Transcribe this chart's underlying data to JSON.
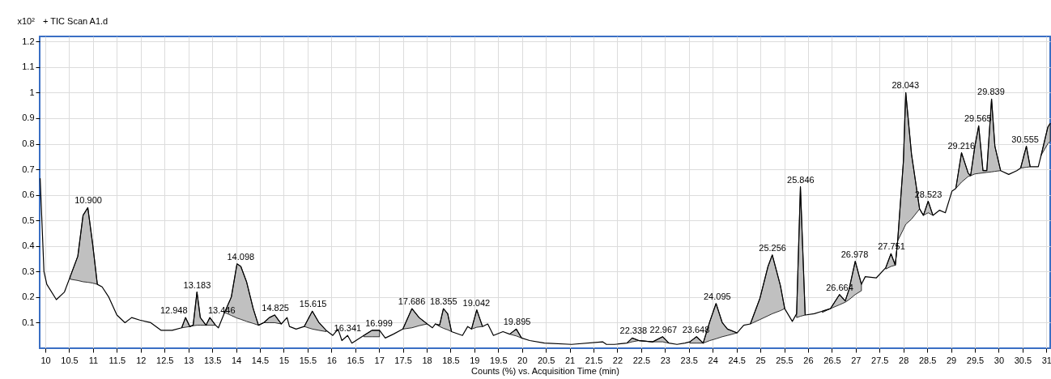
{
  "chart_data": {
    "type": "line",
    "title": "+ TIC Scan A1.d",
    "xlabel": "Counts (%) vs. Acquisition Time (min)",
    "ylabel": "x10²",
    "xlim": [
      9.88,
      31.08
    ],
    "ylim": [
      0,
      1.22
    ],
    "xticks": [
      10,
      10.5,
      11,
      11.5,
      12,
      12.5,
      13,
      13.5,
      14,
      14.5,
      15,
      15.5,
      16,
      16.5,
      17,
      17.5,
      18,
      18.5,
      19,
      19.5,
      20,
      20.5,
      21,
      21.5,
      22,
      22.5,
      23,
      23.5,
      24,
      24.5,
      25,
      25.5,
      26,
      26.5,
      27,
      27.5,
      28,
      28.5,
      29,
      29.5,
      30,
      30.5,
      31
    ],
    "yticks": [
      0.1,
      0.2,
      0.3,
      0.4,
      0.5,
      0.6,
      0.7,
      0.8,
      0.9,
      1,
      1.1,
      1.2
    ],
    "grid": true,
    "x": [
      9.89,
      9.97,
      10.03,
      10.23,
      10.4,
      10.52,
      10.68,
      10.79,
      10.89,
      10.99,
      11.09,
      11.19,
      11.33,
      11.5,
      11.67,
      11.81,
      11.98,
      12.21,
      12.43,
      12.66,
      12.86,
      12.94,
      13.03,
      13.1,
      13.18,
      13.25,
      13.37,
      13.45,
      13.57,
      13.63,
      13.76,
      13.9,
      14.02,
      14.1,
      14.22,
      14.36,
      14.47,
      14.58,
      14.7,
      14.81,
      14.95,
      15.07,
      15.12,
      15.26,
      15.43,
      15.6,
      15.74,
      15.89,
      16.03,
      16.14,
      16.22,
      16.34,
      16.43,
      16.68,
      16.85,
      17.01,
      17.13,
      17.3,
      17.5,
      17.69,
      17.84,
      18.01,
      18.12,
      18.18,
      18.27,
      18.35,
      18.44,
      18.52,
      18.75,
      18.86,
      18.94,
      19.05,
      19.17,
      19.28,
      19.4,
      19.6,
      19.74,
      19.88,
      19.99,
      20.16,
      20.47,
      21.04,
      21.69,
      21.77,
      21.94,
      22.2,
      22.31,
      22.45,
      22.74,
      22.95,
      23.08,
      23.25,
      23.42,
      23.52,
      23.66,
      23.8,
      23.94,
      24.07,
      24.2,
      24.31,
      24.51,
      24.65,
      24.79,
      24.99,
      25.16,
      25.25,
      25.42,
      25.51,
      25.67,
      25.76,
      25.84,
      25.94,
      26.13,
      26.3,
      26.47,
      26.66,
      26.78,
      26.86,
      26.99,
      27.12,
      27.2,
      27.43,
      27.63,
      27.74,
      27.83,
      27.88,
      28,
      28.05,
      28.17,
      28.34,
      28.42,
      28.52,
      28.62,
      28.76,
      28.88,
      29.02,
      29.1,
      29.22,
      29.36,
      29.41,
      29.5,
      29.58,
      29.67,
      29.75,
      29.85,
      29.92,
      30.04,
      30.21,
      30.38,
      30.46,
      30.58,
      30.66,
      30.83,
      30.89,
      31.03,
      31.08
    ],
    "series": [
      {
        "color": "#000000",
        "values": [
          0.665,
          0.3,
          0.25,
          0.19,
          0.22,
          0.28,
          0.36,
          0.52,
          0.55,
          0.41,
          0.25,
          0.24,
          0.2,
          0.13,
          0.1,
          0.12,
          0.11,
          0.1,
          0.07,
          0.07,
          0.08,
          0.12,
          0.085,
          0.09,
          0.22,
          0.12,
          0.09,
          0.12,
          0.09,
          0.08,
          0.14,
          0.2,
          0.33,
          0.32,
          0.26,
          0.155,
          0.09,
          0.1,
          0.12,
          0.13,
          0.095,
          0.12,
          0.085,
          0.075,
          0.085,
          0.145,
          0.1,
          0.07,
          0.05,
          0.075,
          0.03,
          0.05,
          0.02,
          0.05,
          0.07,
          0.07,
          0.04,
          0.055,
          0.075,
          0.155,
          0.12,
          0.095,
          0.08,
          0.095,
          0.09,
          0.155,
          0.135,
          0.065,
          0.05,
          0.085,
          0.075,
          0.15,
          0.085,
          0.095,
          0.05,
          0.065,
          0.055,
          0.075,
          0.04,
          0.03,
          0.02,
          0.015,
          0.025,
          0.015,
          0.015,
          0.02,
          0.04,
          0.03,
          0.025,
          0.045,
          0.02,
          0.015,
          0.02,
          0.025,
          0.045,
          0.02,
          0.105,
          0.175,
          0.1,
          0.075,
          0.06,
          0.09,
          0.095,
          0.195,
          0.32,
          0.365,
          0.245,
          0.155,
          0.105,
          0.135,
          0.632,
          0.13,
          0.135,
          0.145,
          0.155,
          0.21,
          0.185,
          0.23,
          0.34,
          0.25,
          0.28,
          0.275,
          0.315,
          0.37,
          0.325,
          0.42,
          0.73,
          1.0,
          0.76,
          0.545,
          0.52,
          0.575,
          0.52,
          0.54,
          0.53,
          0.615,
          0.625,
          0.765,
          0.685,
          0.675,
          0.79,
          0.87,
          0.695,
          0.695,
          0.975,
          0.79,
          0.695,
          0.68,
          0.695,
          0.705,
          0.79,
          0.71,
          0.71,
          0.755,
          0.865,
          0.88
        ],
        "lower": [
          null,
          null,
          null,
          null,
          null,
          0.27,
          0.265,
          0.26,
          0.258,
          0.255,
          0.25,
          null,
          null,
          null,
          null,
          null,
          null,
          null,
          null,
          null,
          0.08,
          0.082,
          0.085,
          0.088,
          0.09,
          0.09,
          0.09,
          0.09,
          0.09,
          null,
          0.14,
          0.128,
          0.118,
          0.113,
          0.105,
          0.097,
          0.09,
          0.1,
          0.1,
          0.1,
          0.095,
          null,
          null,
          null,
          0.085,
          0.075,
          0.07,
          0.065,
          null,
          null,
          null,
          null,
          null,
          0.045,
          0.045,
          0.045,
          null,
          null,
          0.075,
          0.08,
          0.088,
          0.095,
          null,
          0.095,
          0.085,
          0.078,
          0.072,
          0.065,
          null,
          null,
          0.075,
          0.082,
          0.085,
          null,
          null,
          null,
          0.055,
          0.048,
          0.04,
          null,
          null,
          null,
          null,
          null,
          null,
          0.02,
          0.025,
          0.03,
          0.025,
          0.025,
          0.02,
          null,
          null,
          0.02,
          0.02,
          0.02,
          0.03,
          0.037,
          0.045,
          0.05,
          0.06,
          null,
          0.095,
          0.112,
          0.127,
          0.135,
          0.147,
          0.155,
          null,
          0.12,
          0.125,
          0.13,
          null,
          0.14,
          0.155,
          0.17,
          0.18,
          0.19,
          0.21,
          0.225,
          null,
          null,
          0.31,
          0.32,
          0.325,
          0.42,
          0.465,
          0.485,
          0.505,
          0.545,
          0.52,
          0.53,
          0.52,
          null,
          null,
          null,
          0.625,
          0.65,
          0.672,
          0.675,
          0.682,
          0.684,
          0.686,
          0.688,
          0.69,
          0.692,
          0.695,
          null,
          null,
          0.705,
          0.708,
          0.71,
          null,
          0.755,
          0.8,
          0.81
        ],
        "upper": [
          null,
          null,
          null,
          null,
          null,
          0.28,
          0.36,
          0.52,
          0.55,
          0.41,
          0.25,
          null,
          null,
          null,
          null,
          null,
          null,
          null,
          null,
          null,
          0.08,
          0.12,
          0.085,
          0.09,
          0.22,
          0.12,
          0.09,
          0.12,
          0.09,
          null,
          0.14,
          0.2,
          0.33,
          0.32,
          0.26,
          0.155,
          0.09,
          0.1,
          0.12,
          0.13,
          0.095,
          null,
          null,
          null,
          0.085,
          0.145,
          0.1,
          0.07,
          null,
          null,
          null,
          null,
          null,
          0.05,
          0.07,
          0.07,
          null,
          null,
          0.075,
          0.155,
          0.12,
          0.095,
          null,
          0.095,
          0.09,
          0.155,
          0.135,
          0.065,
          null,
          null,
          0.075,
          0.15,
          0.085,
          null,
          null,
          null,
          0.055,
          0.075,
          0.04,
          null,
          null,
          null,
          null,
          null,
          null,
          0.02,
          0.04,
          0.03,
          0.025,
          0.045,
          0.02,
          null,
          null,
          0.025,
          0.045,
          0.02,
          0.105,
          0.175,
          0.1,
          0.075,
          0.06,
          null,
          0.095,
          0.195,
          0.32,
          0.365,
          0.245,
          0.155,
          null,
          0.135,
          0.632,
          0.13,
          null,
          0.145,
          0.155,
          0.21,
          0.185,
          0.23,
          0.34,
          0.25,
          null,
          null,
          0.315,
          0.37,
          0.325,
          0.42,
          0.73,
          1.0,
          0.76,
          0.545,
          0.52,
          0.575,
          0.52,
          null,
          null,
          null,
          0.625,
          0.765,
          0.685,
          0.675,
          0.79,
          0.87,
          0.695,
          0.695,
          0.975,
          0.79,
          0.695,
          null,
          null,
          0.705,
          0.79,
          0.71,
          null,
          0.755,
          0.865,
          0.88
        ]
      }
    ],
    "annotations": [
      {
        "text": "10.900",
        "x": 10.9,
        "y": 0.55
      },
      {
        "text": "12.948",
        "x": 12.948,
        "y": 0.12
      },
      {
        "text": "13.183",
        "x": 13.183,
        "y": 0.22
      },
      {
        "text": "13.446",
        "x": 13.446,
        "y": 0.12
      },
      {
        "text": "14.098",
        "x": 14.098,
        "y": 0.33
      },
      {
        "text": "14.825",
        "x": 14.825,
        "y": 0.13
      },
      {
        "text": "15.615",
        "x": 15.615,
        "y": 0.145
      },
      {
        "text": "16.341",
        "x": 16.341,
        "y": 0.05
      },
      {
        "text": "16.999",
        "x": 16.999,
        "y": 0.07
      },
      {
        "text": "17.686",
        "x": 17.686,
        "y": 0.155
      },
      {
        "text": "18.355",
        "x": 18.355,
        "y": 0.155
      },
      {
        "text": "19.042",
        "x": 19.042,
        "y": 0.15
      },
      {
        "text": "19.895",
        "x": 19.895,
        "y": 0.075
      },
      {
        "text": "22.338",
        "x": 22.338,
        "y": 0.04
      },
      {
        "text": "22.967",
        "x": 22.967,
        "y": 0.045
      },
      {
        "text": "23.648",
        "x": 23.648,
        "y": 0.045
      },
      {
        "text": "24.095",
        "x": 24.095,
        "y": 0.175
      },
      {
        "text": "25.256",
        "x": 25.256,
        "y": 0.365
      },
      {
        "text": "25.846",
        "x": 25.846,
        "y": 0.632
      },
      {
        "text": "26.664",
        "x": 26.664,
        "y": 0.21
      },
      {
        "text": "26.978",
        "x": 26.978,
        "y": 0.34
      },
      {
        "text": "27.751",
        "x": 27.751,
        "y": 0.37
      },
      {
        "text": "28.043",
        "x": 28.043,
        "y": 1.0
      },
      {
        "text": "28.523",
        "x": 28.523,
        "y": 0.575
      },
      {
        "text": "29.216",
        "x": 29.216,
        "y": 0.765
      },
      {
        "text": "29.565",
        "x": 29.565,
        "y": 0.87
      },
      {
        "text": "29.839",
        "x": 29.839,
        "y": 0.975
      },
      {
        "text": "30.555",
        "x": 30.555,
        "y": 0.79
      }
    ]
  }
}
